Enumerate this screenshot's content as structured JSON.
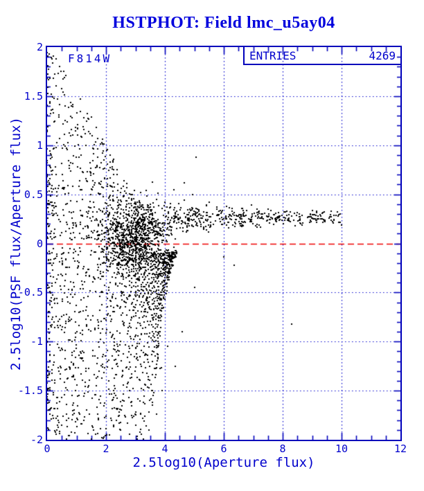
{
  "window": {
    "title": "HSTPHOT: Field lmc_u5ay04"
  },
  "colors": {
    "frame_blue": "#0000bb",
    "text_blue": "#0000cc",
    "title_blue": "#0000dd",
    "grid_blue": "#0000cc",
    "reference_red": "#ee0000",
    "point_black": "#000000",
    "background": "#ffffff"
  },
  "chart_data": {
    "type": "scatter",
    "title": "HSTPHOT: Field lmc_u5ay04",
    "filter": "F814W",
    "entries_label": "ENTRIES",
    "entries_value": "4269",
    "n_entries": 4269,
    "xlabel": "2.5log10(Aperture flux)",
    "ylabel": "2.5log10(PSF flux/Aperture flux)",
    "xlim": [
      0,
      12
    ],
    "ylim": [
      -2,
      2
    ],
    "x_minor_step": 0.5,
    "y_minor_step": 0.1,
    "x_tick_labels": [
      {
        "v": 0,
        "t": "0"
      },
      {
        "v": 2,
        "t": "2"
      },
      {
        "v": 4,
        "t": "4"
      },
      {
        "v": 6,
        "t": "6"
      },
      {
        "v": 8,
        "t": "8"
      },
      {
        "v": 10,
        "t": "10"
      },
      {
        "v": 12,
        "t": "12"
      }
    ],
    "y_tick_labels": [
      {
        "v": 2,
        "t": "2"
      },
      {
        "v": 1.5,
        "t": "1.5"
      },
      {
        "v": 1,
        "t": "1"
      },
      {
        "v": 0.5,
        "t": "0.5"
      },
      {
        "v": 0,
        "t": "0"
      },
      {
        "v": -0.5,
        "t": "-0.5"
      },
      {
        "v": -1,
        "t": "-1"
      },
      {
        "v": -1.5,
        "t": "-1.5"
      },
      {
        "v": -2,
        "t": "-2"
      }
    ],
    "grid": {
      "x_lines": [
        2,
        4,
        6,
        8,
        10
      ],
      "y_lines": [
        1.5,
        1,
        0.5,
        -0.5,
        -1,
        -1.5
      ],
      "style": "dotted",
      "color": "#0000cc"
    },
    "reference_line": {
      "y": 0,
      "style": "dashed",
      "color": "#ee0000"
    },
    "description": "PSF-to-aperture flux ratio diagnostic: quantized flux arcs fan out at faint magnitudes (x<3.5), a dense clump sits near (2.7,0), and bright stars converge to a tight band at y=0.25 extending to x=10; one outlier near (8.3,-0.8).",
    "generation": {
      "seed": 11,
      "envelope": {
        "a": 2.12,
        "b": 0.55,
        "floor": 0.4
      },
      "components": [
        {
          "kind": "neg_arcs",
          "d_min": 1,
          "d_max": 21,
          "jitter": 0.03,
          "fmax_a": 66,
          "fmax_b": 1.6,
          "fmax_c": 12,
          "fmax_d": 10,
          "keep0": 0.95,
          "keep_slope": 0.014,
          "near_zero_thin": 0.5
        },
        {
          "kind": "arc_fuzz",
          "d_min": 1,
          "d_max": 21,
          "per_d": 9,
          "jitter": 0.06,
          "keep": 0.55
        },
        {
          "kind": "pos_arcs",
          "d_min": 1,
          "d_max": 12,
          "jitter": 0.03,
          "keep0": 0.95,
          "keep_slope": 0.02,
          "low_thin": 0.55
        },
        {
          "kind": "fan_fill",
          "n": 360,
          "x_pow": 1.5,
          "x_max": 2.3,
          "sign": 1
        },
        {
          "kind": "fan_fill",
          "n": 460,
          "x_pow": 1.4,
          "x_max": 2.6,
          "sign": -1
        },
        {
          "kind": "blob",
          "n": 520,
          "cx": 2.7,
          "sx": 0.45,
          "cy": 0.02,
          "sy": 0.16
        },
        {
          "kind": "band",
          "n": 640,
          "x0": 3.0,
          "span": 7.05,
          "pow": 2.0,
          "mean0": 0.26,
          "dip": 0.42,
          "dip_scale": 0.55,
          "sd0": 0.035,
          "sd1": 0.22,
          "sd_scale": 1.3
        },
        {
          "kind": "column",
          "n": 250,
          "cx": 2.75,
          "sx": 0.45,
          "y_min": -1.95,
          "y_max": 0.55,
          "deep_thin": 0.7
        },
        {
          "kind": "sparse",
          "n": 110,
          "x_pow": 1.5,
          "x_max": 4.6,
          "keep": 0.6
        },
        {
          "kind": "outliers",
          "pts": [
            [
              8.3,
              -0.82
            ],
            [
              6.35,
              -0.22
            ],
            [
              6.0,
              -0.14
            ],
            [
              4.65,
              0.62
            ],
            [
              5.05,
              0.88
            ],
            [
              4.95,
              0.5
            ],
            [
              5.5,
              0.42
            ],
            [
              4.3,
              0.55
            ],
            [
              6.1,
              0.38
            ],
            [
              4.6,
              -0.9
            ],
            [
              4.35,
              -1.25
            ],
            [
              5.0,
              -0.45
            ],
            [
              3.9,
              -1.5
            ],
            [
              4.1,
              -1.05
            ]
          ]
        }
      ]
    }
  }
}
